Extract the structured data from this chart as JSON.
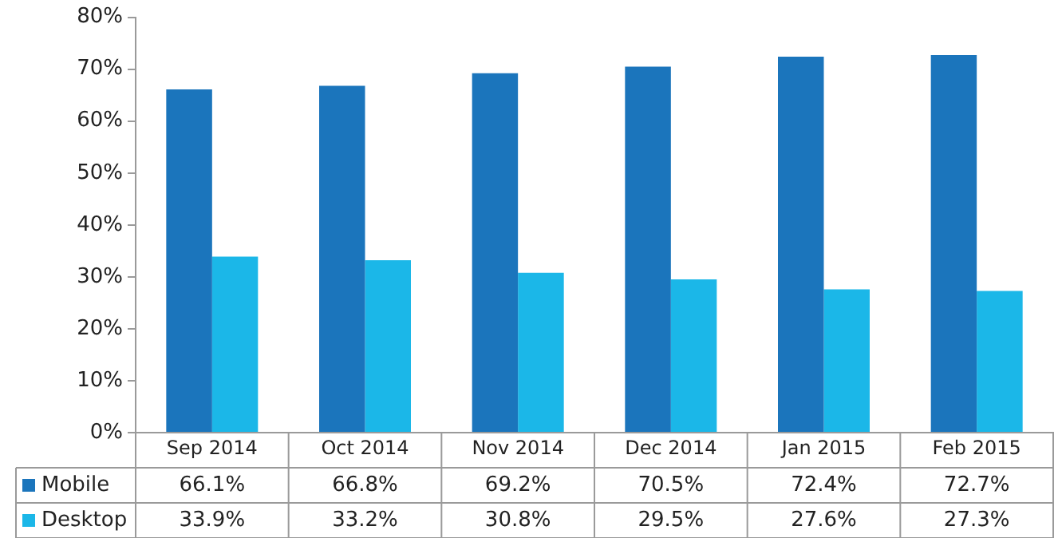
{
  "chart_data": {
    "type": "bar",
    "categories": [
      "Sep 2014",
      "Oct 2014",
      "Nov 2014",
      "Dec 2014",
      "Jan 2015",
      "Feb 2015"
    ],
    "series": [
      {
        "name": "Mobile",
        "color": "#1b75bc",
        "values": [
          66.1,
          66.8,
          69.2,
          70.5,
          72.4,
          72.7
        ],
        "value_labels": [
          "66.1%",
          "66.8%",
          "69.2%",
          "70.5%",
          "72.4%",
          "72.7%"
        ]
      },
      {
        "name": "Desktop",
        "color": "#1bb7e8",
        "values": [
          33.9,
          33.2,
          30.8,
          29.5,
          27.6,
          27.3
        ],
        "value_labels": [
          "33.9%",
          "33.2%",
          "30.8%",
          "29.5%",
          "27.6%",
          "27.3%"
        ]
      }
    ],
    "ylim": [
      0,
      80
    ],
    "yticks": [
      {
        "value": 0,
        "label": "0%"
      },
      {
        "value": 10,
        "label": "10%"
      },
      {
        "value": 20,
        "label": "20%"
      },
      {
        "value": 30,
        "label": "30%"
      },
      {
        "value": 40,
        "label": "40%"
      },
      {
        "value": 50,
        "label": "50%"
      },
      {
        "value": 60,
        "label": "60%"
      },
      {
        "value": 70,
        "label": "70%"
      },
      {
        "value": 80,
        "label": "80%"
      }
    ],
    "grid": false,
    "legend": "bottom left"
  }
}
